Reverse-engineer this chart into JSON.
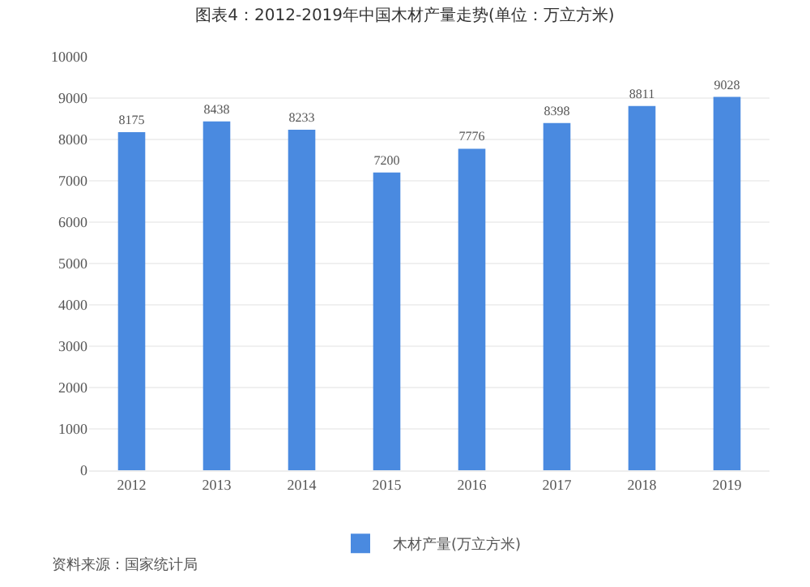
{
  "chart_data": {
    "type": "bar",
    "title": "图表4：2012-2019年中国木材产量走势(单位：万立方米)",
    "categories": [
      "2012",
      "2013",
      "2014",
      "2015",
      "2016",
      "2017",
      "2018",
      "2019"
    ],
    "series": [
      {
        "name": "木材产量(万立方米)",
        "color": "#4a8ae0",
        "values": [
          8175,
          8438,
          8233,
          7200,
          7776,
          8398,
          8811,
          9028
        ]
      }
    ],
    "ylim": [
      0,
      10000
    ],
    "yticks": [
      0,
      1000,
      2000,
      3000,
      4000,
      5000,
      6000,
      7000,
      8000,
      9000,
      10000
    ],
    "grid": "y",
    "legend": "bottom",
    "data_labels": true,
    "annotations": [
      "资料来源：国家统计局"
    ]
  }
}
